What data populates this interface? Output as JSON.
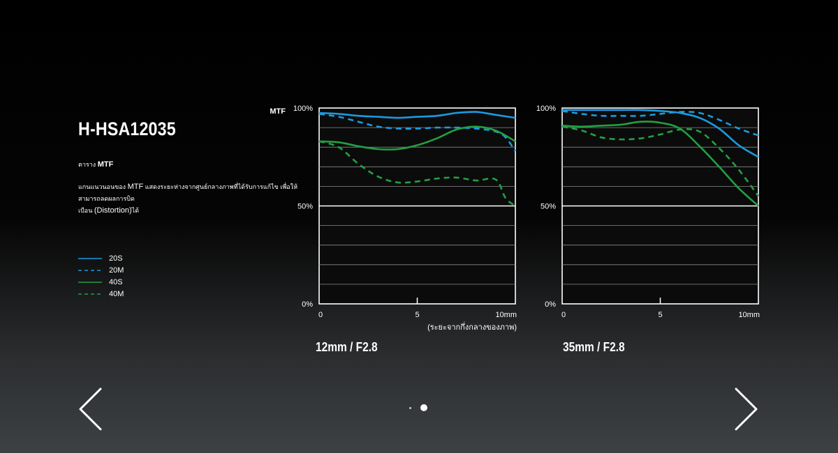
{
  "title": "H-HSA12035",
  "subtitle_prefix": "ตาราง",
  "subtitle_bold": "MTF",
  "desc_line1_a": "แกนแนวนอนของ",
  "desc_line1_b": "MTF",
  "desc_line1_c": "แสดงระยะห่างจากศูนย์กลางภาพที่ได้รับการแก้ไข เพื่อให้สามารถลดผลการบิด",
  "desc_line2_a": "เบือน",
  "desc_line2_b": "(Distortion)",
  "desc_line2_c": "ได้",
  "legend": [
    {
      "label": "20S",
      "color": "#1a9ae0",
      "dash": false
    },
    {
      "label": "20M",
      "color": "#1a9ae0",
      "dash": true
    },
    {
      "label": "40S",
      "color": "#22a043",
      "dash": false
    },
    {
      "label": "40M",
      "color": "#22a043",
      "dash": true
    }
  ],
  "mtf_label": "MTF",
  "x_axis_note": "(ระยะจากกึ่งกลางของภาพ)",
  "nav": {
    "prev": "previous",
    "next": "next"
  },
  "chart_data": [
    {
      "type": "line",
      "title": "12mm / F2.8",
      "ylabel": "MTF",
      "xlabel": "(ระยะจากกึ่งกลางของภาพ)",
      "xlim": [
        0,
        10
      ],
      "ylim": [
        0,
        100
      ],
      "x_tick_labels": [
        {
          "v": 0,
          "t": "0"
        },
        {
          "v": 5,
          "t": "5"
        },
        {
          "v": 10,
          "t": "10mm"
        }
      ],
      "y_tick_labels": [
        {
          "v": 0,
          "t": "0%"
        },
        {
          "v": 50,
          "t": "50%"
        },
        {
          "v": 100,
          "t": "100%"
        }
      ],
      "grid_y": [
        10,
        20,
        30,
        40,
        50,
        60,
        70,
        80,
        90
      ],
      "series": [
        {
          "name": "20S",
          "color": "#1a9ae0",
          "dash": false,
          "x": [
            0,
            1,
            2,
            3,
            4,
            5,
            6,
            7,
            8,
            9,
            10
          ],
          "y": [
            97.5,
            97,
            96,
            95.5,
            95,
            95.5,
            96,
            97.5,
            98,
            96.5,
            95
          ]
        },
        {
          "name": "20M",
          "color": "#1a9ae0",
          "dash": true,
          "x": [
            0,
            1,
            2,
            3,
            4,
            5,
            6,
            7,
            8,
            9,
            9.5,
            10
          ],
          "y": [
            97,
            95.5,
            93,
            90.5,
            89.5,
            89.5,
            90,
            90,
            89.5,
            88,
            85,
            78
          ]
        },
        {
          "name": "40S",
          "color": "#22a043",
          "dash": false,
          "x": [
            0,
            1,
            2,
            3,
            4,
            5,
            6,
            7,
            8,
            9,
            10
          ],
          "y": [
            83,
            82.5,
            80.5,
            79,
            79,
            81,
            84.5,
            89,
            90.5,
            88.5,
            83
          ]
        },
        {
          "name": "40M",
          "color": "#22a043",
          "dash": true,
          "x": [
            0,
            1,
            2,
            3,
            4,
            5,
            6,
            7,
            8,
            9,
            9.5,
            10
          ],
          "y": [
            83,
            80,
            71.5,
            65,
            62,
            62.5,
            64,
            64.5,
            63,
            63.5,
            54,
            50
          ]
        }
      ]
    },
    {
      "type": "line",
      "title": "35mm / F2.8",
      "ylabel": "",
      "xlabel": "",
      "xlim": [
        0,
        10
      ],
      "ylim": [
        0,
        100
      ],
      "x_tick_labels": [
        {
          "v": 0,
          "t": "0"
        },
        {
          "v": 5,
          "t": "5"
        },
        {
          "v": 10,
          "t": "10mm"
        }
      ],
      "y_tick_labels": [
        {
          "v": 0,
          "t": "0%"
        },
        {
          "v": 50,
          "t": "50%"
        },
        {
          "v": 100,
          "t": "100%"
        }
      ],
      "grid_y": [
        10,
        20,
        30,
        40,
        50,
        60,
        70,
        80,
        90
      ],
      "series": [
        {
          "name": "20S",
          "color": "#1a9ae0",
          "dash": false,
          "x": [
            0,
            1,
            2,
            3,
            4,
            5,
            6,
            7,
            8,
            9,
            10
          ],
          "y": [
            99,
            99,
            99,
            99,
            99,
            98.5,
            97.5,
            95,
            89.5,
            81,
            75
          ]
        },
        {
          "name": "20M",
          "color": "#1a9ae0",
          "dash": true,
          "x": [
            0,
            1,
            2,
            3,
            4,
            5,
            6,
            7,
            8,
            9,
            10
          ],
          "y": [
            98.5,
            97,
            96,
            96,
            96,
            97,
            98,
            97.5,
            94,
            89.5,
            86
          ]
        },
        {
          "name": "40S",
          "color": "#22a043",
          "dash": false,
          "x": [
            0,
            1,
            2,
            3,
            4,
            5,
            6,
            7,
            8,
            9,
            10
          ],
          "y": [
            91,
            90.5,
            91,
            91.5,
            93,
            92.5,
            89.5,
            80.5,
            70,
            59,
            50
          ]
        },
        {
          "name": "40M",
          "color": "#22a043",
          "dash": true,
          "x": [
            0,
            1,
            2,
            3,
            4,
            5,
            6,
            7,
            8,
            9,
            10
          ],
          "y": [
            90.5,
            88.5,
            85,
            84,
            84.5,
            86.5,
            89,
            88,
            79.5,
            68.5,
            55
          ]
        }
      ]
    }
  ]
}
